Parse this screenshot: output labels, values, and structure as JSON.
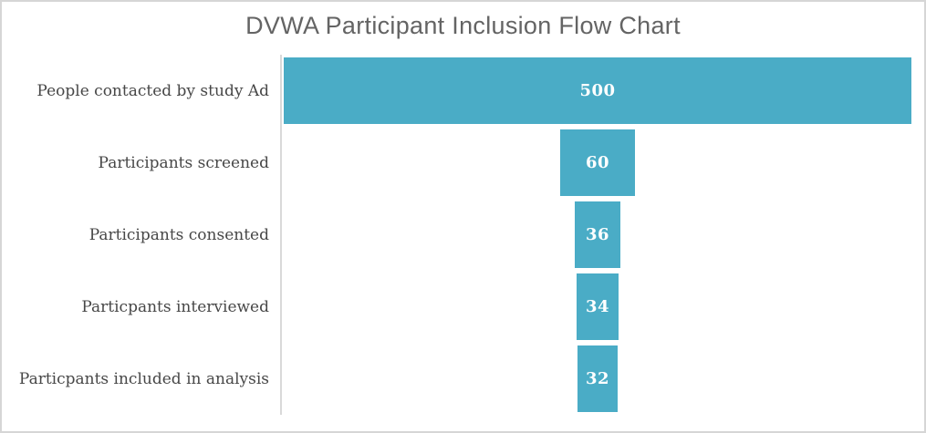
{
  "title": "DVWA Participant Inclusion Flow Chart",
  "colors": {
    "bar": "#4aacc6",
    "title_text": "#646464",
    "label_text": "#474747",
    "value_text": "#ffffff",
    "axis_line": "#d9d9d9",
    "frame_border": "#d6d6d6"
  },
  "chart_data": {
    "type": "bar",
    "subtype": "funnel-horizontal-centered",
    "title": "DVWA Participant Inclusion Flow Chart",
    "categories": [
      "People contacted by study Ad",
      "Participants screened",
      "Participants consented",
      "Particpants interviewed",
      "Particpants included in analysis"
    ],
    "values": [
      500,
      60,
      36,
      34,
      32
    ],
    "max_value": 500,
    "xlabel": "",
    "ylabel": "",
    "data_labels": "inside-white",
    "legend": "none",
    "grid": false,
    "axis_line": "left-vertical-only"
  }
}
